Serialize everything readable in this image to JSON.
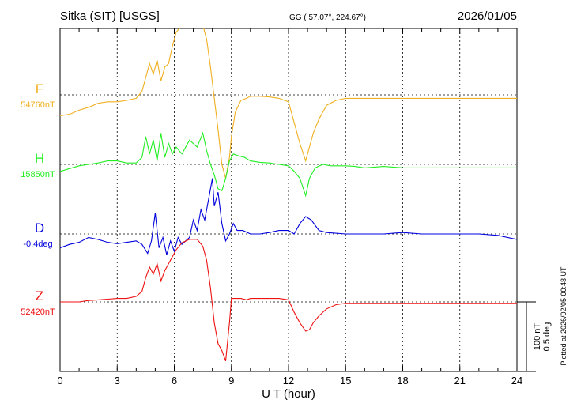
{
  "header": {
    "station": "Sitka (SIT)  [USGS]",
    "coords": "GG ( 57.07°, 224.67°)",
    "date": "2026/01/05"
  },
  "plotted_note": "Plotted at 2026/02/05 00:48 UT",
  "scale": {
    "nt": "100 nT",
    "deg": "0.5 deg"
  },
  "chart_data": {
    "type": "line",
    "title": "Sitka (SIT)  [USGS]",
    "xlabel": "U T (hour)",
    "xlim": [
      0,
      24
    ],
    "xticks": [
      "0",
      "3",
      "6",
      "9",
      "12",
      "15",
      "18",
      "21",
      "24"
    ],
    "grid": true,
    "series": [
      {
        "name": "F",
        "baseline_label": "54760nT",
        "color": "#f0b020",
        "trace_offset": 0,
        "x": [
          0,
          0.5,
          1,
          1.5,
          2,
          2.5,
          3,
          3.5,
          4,
          4.3,
          4.5,
          4.7,
          4.9,
          5.1,
          5.3,
          5.5,
          5.7,
          5.9,
          6.1,
          6.4,
          6.8,
          7.2,
          7.5,
          7.7,
          7.9,
          8.1,
          8.3,
          8.5,
          8.7,
          8.9,
          9.0,
          9.2,
          9.5,
          9.8,
          10,
          10.5,
          11,
          11.5,
          12,
          12.3,
          12.6,
          12.9,
          13.1,
          13.3,
          13.6,
          14,
          14.5,
          15,
          15.5,
          16,
          17,
          18,
          19,
          20,
          21,
          22,
          23,
          24
        ],
        "y": [
          -30,
          -28,
          -22,
          -18,
          -12,
          -10,
          -10,
          -8,
          -5,
          5,
          25,
          45,
          30,
          50,
          20,
          40,
          45,
          70,
          90,
          100,
          100,
          100,
          100,
          80,
          40,
          -5,
          -50,
          -100,
          -120,
          -90,
          -60,
          -25,
          -8,
          -5,
          -2,
          -2,
          -3,
          -5,
          -10,
          -40,
          -70,
          -95,
          -75,
          -55,
          -35,
          -15,
          -8,
          -5,
          -5,
          -5,
          -5,
          -5,
          -5,
          -5,
          -5,
          -5,
          -5,
          -5
        ]
      },
      {
        "name": "H",
        "baseline_label": "15850nT",
        "color": "#22ee22",
        "trace_offset": 88,
        "x": [
          0,
          0.5,
          1,
          1.5,
          2,
          2.5,
          3,
          3.5,
          4,
          4.3,
          4.5,
          4.7,
          4.9,
          5.1,
          5.3,
          5.5,
          5.7,
          5.9,
          6.1,
          6.4,
          6.8,
          7.2,
          7.5,
          7.7,
          7.9,
          8.1,
          8.3,
          8.5,
          8.7,
          8.9,
          9.1,
          9.4,
          9.7,
          10,
          10.5,
          11,
          11.5,
          12,
          12.3,
          12.6,
          12.9,
          13.1,
          13.4,
          13.8,
          14.2,
          15,
          15.5,
          16,
          17,
          18,
          19,
          20,
          21,
          22,
          23,
          24
        ],
        "y": [
          -10,
          -6,
          -2,
          0,
          2,
          5,
          5,
          2,
          2,
          10,
          40,
          15,
          35,
          5,
          45,
          10,
          30,
          15,
          25,
          15,
          35,
          25,
          45,
          20,
          0,
          -15,
          -35,
          -38,
          -20,
          5,
          15,
          12,
          10,
          5,
          3,
          2,
          0,
          -2,
          -10,
          -20,
          -45,
          -20,
          -5,
          0,
          -2,
          -2,
          -3,
          -5,
          -3,
          -5,
          -5,
          -5,
          -5,
          -5,
          -5,
          -5
        ]
      },
      {
        "name": "D",
        "baseline_label": "-0.4deg",
        "color": "#0000dd",
        "trace_offset": 0,
        "x": [
          0,
          0.5,
          1,
          1.5,
          2,
          2.5,
          3,
          3.5,
          4,
          4.3,
          4.6,
          4.8,
          5.0,
          5.2,
          5.4,
          5.6,
          5.8,
          6.0,
          6.2,
          6.4,
          6.6,
          6.8,
          7.0,
          7.2,
          7.4,
          7.6,
          7.8,
          8.0,
          8.1,
          8.3,
          8.5,
          8.7,
          8.9,
          9.1,
          9.3,
          9.6,
          10,
          10.5,
          11,
          11.5,
          12,
          12.3,
          12.6,
          12.9,
          13.2,
          13.6,
          14,
          15,
          16,
          17,
          18,
          19,
          20,
          21,
          22,
          23,
          24
        ],
        "y": [
          -20,
          -15,
          -12,
          -5,
          -8,
          -12,
          -14,
          -12,
          -10,
          -15,
          -28,
          -10,
          30,
          -20,
          -5,
          -30,
          -10,
          -25,
          -5,
          -15,
          -10,
          -5,
          20,
          5,
          35,
          20,
          50,
          80,
          40,
          60,
          15,
          -10,
          0,
          15,
          5,
          5,
          0,
          0,
          2,
          5,
          5,
          0,
          15,
          25,
          20,
          5,
          2,
          0,
          0,
          0,
          2,
          0,
          0,
          0,
          0,
          -2,
          -8
        ]
      },
      {
        "name": "Z",
        "baseline_label": "52420nT",
        "color": "#ee1111",
        "trace_offset": 0,
        "x": [
          0,
          0.5,
          1,
          1.5,
          2,
          2.5,
          3,
          3.5,
          4,
          4.3,
          4.5,
          4.7,
          4.9,
          5.1,
          5.3,
          5.5,
          5.7,
          5.9,
          6.1,
          6.4,
          6.8,
          7.2,
          7.5,
          7.7,
          7.9,
          8.1,
          8.3,
          8.5,
          8.7,
          8.9,
          9.0,
          9.2,
          9.5,
          9.8,
          10,
          10.5,
          11,
          11.5,
          12,
          12.3,
          12.6,
          12.9,
          13.1,
          13.3,
          13.6,
          14,
          14.5,
          15,
          15.5,
          16,
          17,
          18,
          19,
          20,
          21,
          22,
          23,
          24
        ],
        "y": [
          0,
          0,
          0,
          2,
          3,
          4,
          5,
          5,
          8,
          15,
          35,
          50,
          40,
          55,
          30,
          45,
          55,
          65,
          75,
          85,
          90,
          90,
          80,
          60,
          20,
          -30,
          -60,
          -70,
          -85,
          -30,
          5,
          5,
          5,
          3,
          5,
          5,
          5,
          5,
          3,
          -15,
          -30,
          -42,
          -40,
          -30,
          -20,
          -10,
          -4,
          -2,
          -2,
          -2,
          -2,
          -2,
          -2,
          -2,
          -2,
          -2,
          -2,
          -2
        ]
      }
    ]
  }
}
